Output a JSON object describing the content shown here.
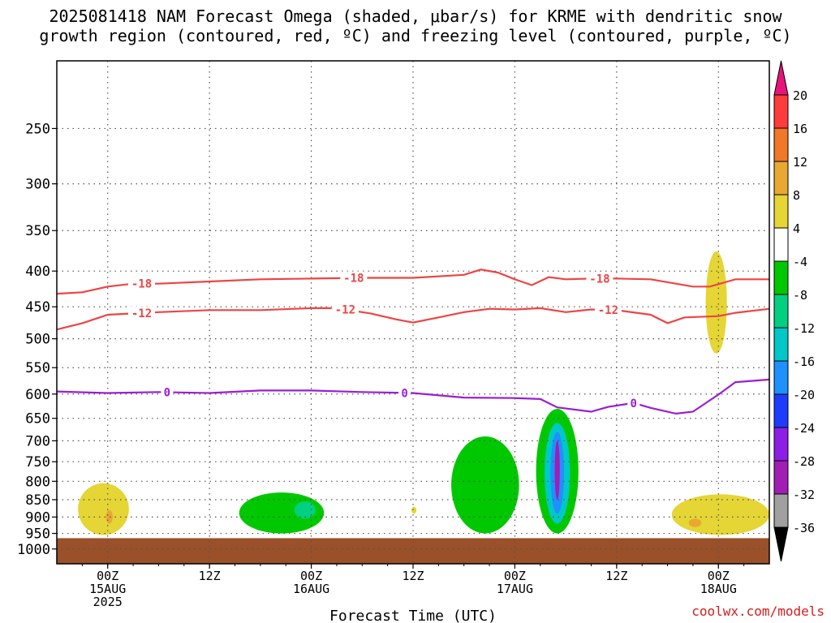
{
  "title_line1": "2025081418 NAM Forecast Omega (shaded, μbar/s) for KRME with dendritic snow",
  "title_line2": "growth region (contoured, red, ºC) and freezing level (contoured, purple, ºC)",
  "credit": "coolwx.com/models",
  "chart_data": {
    "type": "heatmap",
    "title": "2025081418 NAM Forecast Omega (shaded, μbar/s) for KRME with dendritic snow growth region (contoured, red, ºC) and freezing level (contoured, purple, ºC)",
    "xlabel": "Forecast Time (UTC)",
    "ylabel": "",
    "y_axis": {
      "scale": "log",
      "inverted": true,
      "range_hPa": [
        1050,
        200
      ],
      "ticks": [
        250,
        300,
        350,
        400,
        450,
        500,
        550,
        600,
        650,
        700,
        750,
        800,
        850,
        900,
        950,
        1000
      ]
    },
    "x_axis": {
      "range_hours_from_init": [
        0,
        84
      ],
      "ticks": [
        {
          "hour": 6,
          "label": "00Z",
          "sub1": "15AUG",
          "sub2": "2025"
        },
        {
          "hour": 18,
          "label": "12Z",
          "sub1": "",
          "sub2": ""
        },
        {
          "hour": 30,
          "label": "00Z",
          "sub1": "16AUG",
          "sub2": ""
        },
        {
          "hour": 42,
          "label": "12Z",
          "sub1": "",
          "sub2": ""
        },
        {
          "hour": 54,
          "label": "00Z",
          "sub1": "17AUG",
          "sub2": ""
        },
        {
          "hour": 66,
          "label": "12Z",
          "sub1": "",
          "sub2": ""
        },
        {
          "hour": 78,
          "label": "00Z",
          "sub1": "18AUG",
          "sub2": ""
        }
      ]
    },
    "grid": true,
    "colorbar": {
      "labels": [
        "20",
        "16",
        "12",
        "8",
        "4",
        "-4",
        "-8",
        "-12",
        "-16",
        "-20",
        "-24",
        "-28",
        "-32",
        "-36"
      ],
      "colors": [
        "#ff3b3b",
        "#f07828",
        "#e8a832",
        "#e5d535",
        "#ffffff",
        "#00c800",
        "#00d080",
        "#00c8c8",
        "#1e90ff",
        "#1e3cff",
        "#8c1ee6",
        "#a01eb4",
        "#a0a0a0"
      ],
      "top_extend_color": "#e6147a",
      "bottom_extend_color": "#000000"
    },
    "contours": [
      {
        "name": "-18",
        "color": "#ee4444",
        "labels_at_hours": [
          10,
          35,
          64
        ],
        "points": [
          [
            0,
            431
          ],
          [
            3,
            429
          ],
          [
            6,
            421
          ],
          [
            9,
            417
          ],
          [
            12,
            417
          ],
          [
            18,
            414
          ],
          [
            24,
            411
          ],
          [
            30,
            410
          ],
          [
            36,
            409
          ],
          [
            42,
            409
          ],
          [
            48,
            405
          ],
          [
            50,
            398
          ],
          [
            52,
            402
          ],
          [
            54,
            411
          ],
          [
            56,
            419
          ],
          [
            58,
            408
          ],
          [
            60,
            411
          ],
          [
            63,
            410
          ],
          [
            66,
            410
          ],
          [
            70,
            411
          ],
          [
            75,
            421
          ],
          [
            77,
            421
          ],
          [
            80,
            411
          ],
          [
            84,
            411
          ]
        ]
      },
      {
        "name": "-12",
        "color": "#ee4444",
        "labels_at_hours": [
          10,
          34,
          65
        ],
        "points": [
          [
            0,
            485
          ],
          [
            3,
            475
          ],
          [
            6,
            462
          ],
          [
            9,
            460
          ],
          [
            12,
            458
          ],
          [
            18,
            455
          ],
          [
            24,
            455
          ],
          [
            30,
            452
          ],
          [
            33,
            452
          ],
          [
            37,
            460
          ],
          [
            40,
            469
          ],
          [
            42,
            474
          ],
          [
            45,
            466
          ],
          [
            48,
            458
          ],
          [
            51,
            453
          ],
          [
            54,
            454
          ],
          [
            57,
            452
          ],
          [
            60,
            458
          ],
          [
            63,
            454
          ],
          [
            66,
            455
          ],
          [
            70,
            462
          ],
          [
            72,
            475
          ],
          [
            74,
            466
          ],
          [
            78,
            464
          ],
          [
            80,
            459
          ],
          [
            84,
            453
          ]
        ]
      },
      {
        "name": "0",
        "color": "#9a1ed2",
        "labels_at_hours": [
          13,
          41,
          68
        ],
        "points": [
          [
            0,
            595
          ],
          [
            6,
            598
          ],
          [
            12,
            596
          ],
          [
            18,
            598
          ],
          [
            24,
            593
          ],
          [
            30,
            593
          ],
          [
            36,
            596
          ],
          [
            42,
            598
          ],
          [
            48,
            607
          ],
          [
            54,
            608
          ],
          [
            57,
            610
          ],
          [
            59,
            627
          ],
          [
            63,
            636
          ],
          [
            65,
            626
          ],
          [
            68,
            618
          ],
          [
            70,
            628
          ],
          [
            73,
            640
          ],
          [
            75,
            636
          ],
          [
            78,
            601
          ],
          [
            80,
            577
          ],
          [
            84,
            572
          ]
        ]
      }
    ],
    "omega_regions": [
      {
        "value_band": "4 to 8",
        "color": "#e5d535",
        "hours": [
          2.5,
          8.5
        ],
        "pressure_hPa": [
          805,
          955
        ]
      },
      {
        "value_band": "8 to 12",
        "color": "#e8a832",
        "hours": [
          5.8,
          6.6
        ],
        "pressure_hPa": [
          880,
          920
        ]
      },
      {
        "value_band": "-4 to -8",
        "color": "#00c800",
        "hours": [
          21.5,
          31.5
        ],
        "pressure_hPa": [
          830,
          950
        ]
      },
      {
        "value_band": "-8 to -12",
        "color": "#00d080",
        "hours": [
          28,
          30.5
        ],
        "pressure_hPa": [
          855,
          905
        ]
      },
      {
        "value_band": "4 to 8",
        "color": "#e5d535",
        "hours": [
          41.8,
          42.4
        ],
        "pressure_hPa": [
          870,
          890
        ]
      },
      {
        "value_band": "-4 to -8",
        "color": "#00c800",
        "hours": [
          46.5,
          54.5
        ],
        "pressure_hPa": [
          690,
          950
        ]
      },
      {
        "value_band": "-4 to -8",
        "color": "#00c800",
        "hours": [
          56.5,
          61.5
        ],
        "pressure_hPa": [
          630,
          950
        ]
      },
      {
        "value_band": "-8 to -16",
        "color": "#00c8c8",
        "hours": [
          57.5,
          60.5
        ],
        "pressure_hPa": [
          660,
          920
        ]
      },
      {
        "value_band": "-16 to -24",
        "color": "#1e90ff",
        "hours": [
          58.2,
          59.8
        ],
        "pressure_hPa": [
          680,
          890
        ]
      },
      {
        "value_band": "-24 to -32",
        "color": "#a01eb4",
        "hours": [
          58.7,
          59.3
        ],
        "pressure_hPa": [
          700,
          850
        ]
      },
      {
        "value_band": "4 to 8",
        "color": "#e5d535",
        "hours": [
          76.5,
          79
        ],
        "pressure_hPa": [
          375,
          525
        ]
      },
      {
        "value_band": "4 to 8",
        "color": "#e5d535",
        "hours": [
          72.5,
          84
        ],
        "pressure_hPa": [
          835,
          955
        ]
      },
      {
        "value_band": "8 to 12",
        "color": "#e8a832",
        "hours": [
          74.5,
          76
        ],
        "pressure_hPa": [
          905,
          930
        ]
      }
    ],
    "ground": {
      "color": "#9a5028",
      "pressure_hPa": 965
    }
  }
}
